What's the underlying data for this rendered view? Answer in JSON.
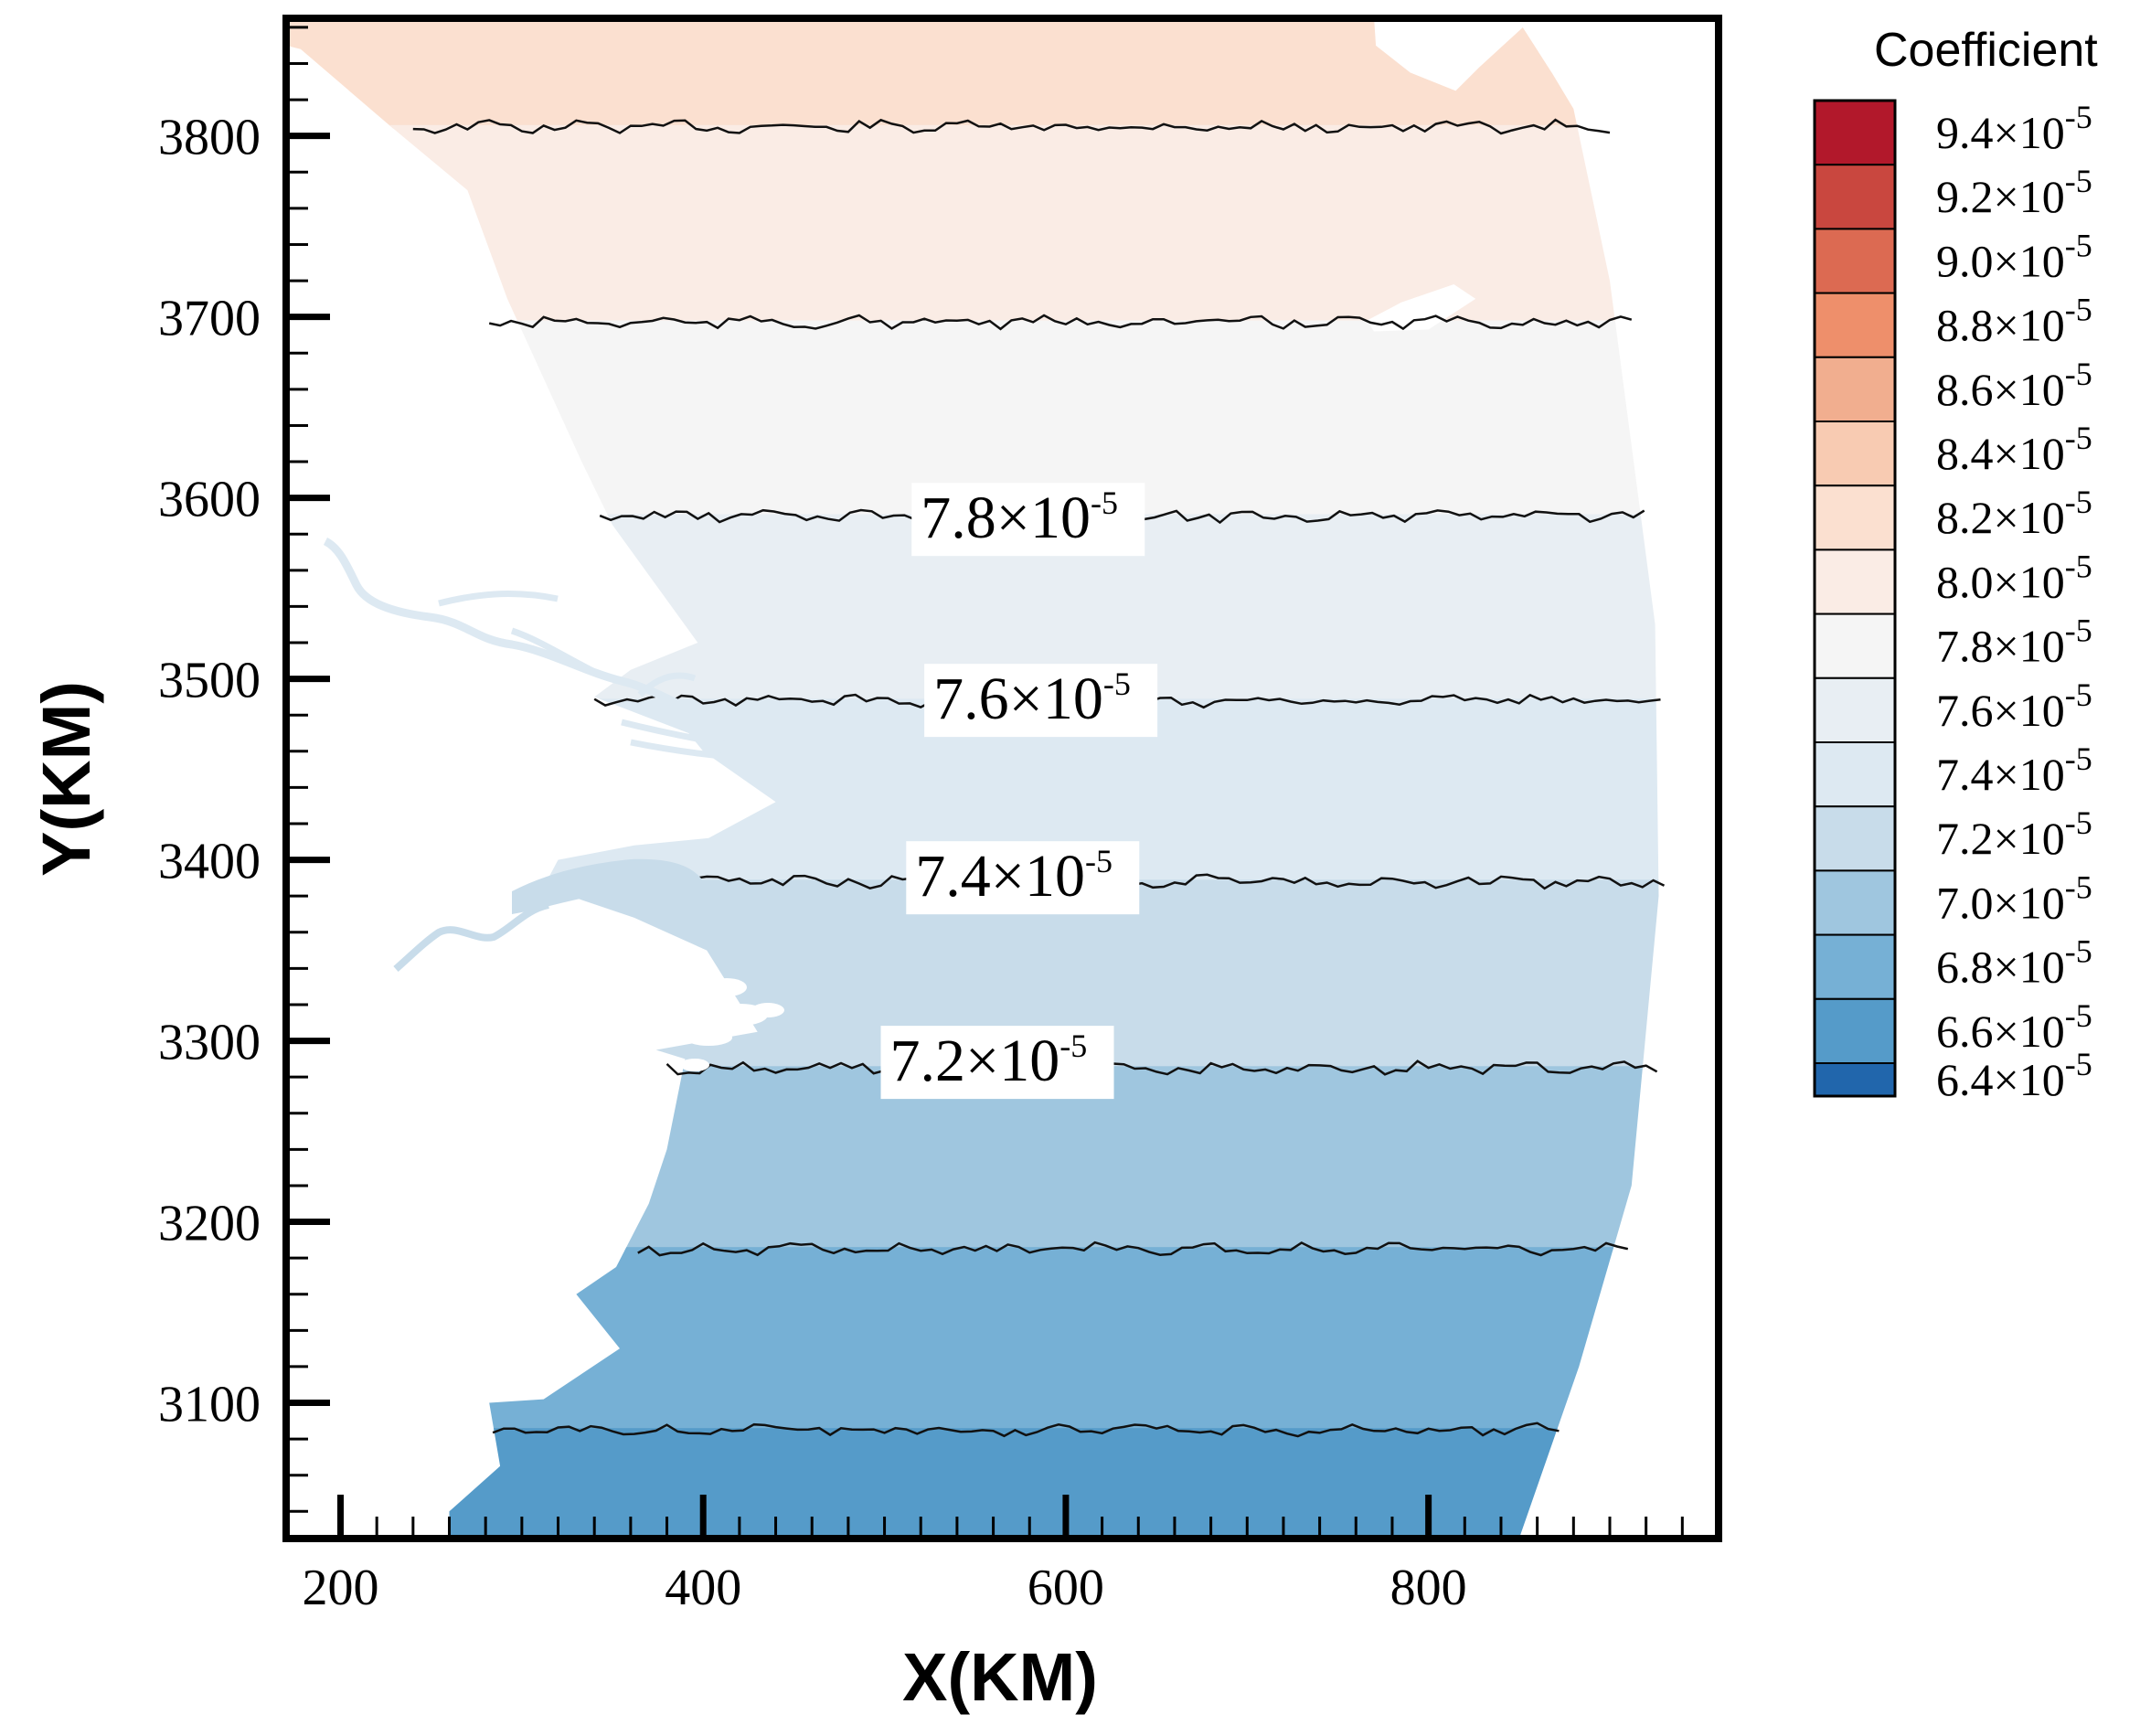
{
  "chart_data": {
    "type": "contour",
    "xlabel": "X(KM)",
    "ylabel": "Y(KM)",
    "xlim": [
      170,
      960
    ],
    "ylim": [
      3025,
      3865
    ],
    "x_ticks": [
      200,
      400,
      600,
      800
    ],
    "y_ticks": [
      3100,
      3200,
      3300,
      3400,
      3500,
      3600,
      3700,
      3800
    ],
    "grid": false,
    "legend": {
      "title": "Coefficient",
      "placement": "right",
      "levels": [
        {
          "label": "9.4×10-5",
          "mantissa": "9.4×10",
          "exp": "-5",
          "color": "#b2182b"
        },
        {
          "label": "9.2×10-5",
          "mantissa": "9.2×10",
          "exp": "-5",
          "color": "#c9473f"
        },
        {
          "label": "9.0×10-5",
          "mantissa": "9.0×10",
          "exp": "-5",
          "color": "#dc6a52"
        },
        {
          "label": "8.8×10-5",
          "mantissa": "8.8×10",
          "exp": "-5",
          "color": "#ee8f6b"
        },
        {
          "label": "8.6×10-5",
          "mantissa": "8.6×10",
          "exp": "-5",
          "color": "#f1ae8f"
        },
        {
          "label": "8.4×10-5",
          "mantissa": "8.4×10",
          "exp": "-5",
          "color": "#f8cbb2"
        },
        {
          "label": "8.2×10-5",
          "mantissa": "8.2×10",
          "exp": "-5",
          "color": "#fbe0d0"
        },
        {
          "label": "8.0×10-5",
          "mantissa": "8.0×10",
          "exp": "-5",
          "color": "#faece5"
        },
        {
          "label": "7.8×10-5",
          "mantissa": "7.8×10",
          "exp": "-5",
          "color": "#f5f5f5"
        },
        {
          "label": "7.6×10-5",
          "mantissa": "7.6×10",
          "exp": "-5",
          "color": "#e8eef3"
        },
        {
          "label": "7.4×10-5",
          "mantissa": "7.4×10",
          "exp": "-5",
          "color": "#dde9f2"
        },
        {
          "label": "7.2×10-5",
          "mantissa": "7.2×10",
          "exp": "-5",
          "color": "#c8dcea"
        },
        {
          "label": "7.0×10-5",
          "mantissa": "7.0×10",
          "exp": "-5",
          "color": "#9fc6df"
        },
        {
          "label": "6.8×10-5",
          "mantissa": "6.8×10",
          "exp": "-5",
          "color": "#76b0d5"
        },
        {
          "label": "6.6×10-5",
          "mantissa": "6.6×10",
          "exp": "-5",
          "color": "#559bc9"
        },
        {
          "label": "6.4×10-5",
          "mantissa": "6.4×10",
          "exp": "-5",
          "color": "#3b7cbc"
        }
      ],
      "bottom_color": "#2166ac"
    },
    "bands": [
      {
        "y_from": 3805,
        "y_to": 3865,
        "color": "#fbe0d0"
      },
      {
        "y_from": 3697,
        "y_to": 3805,
        "color": "#faece5"
      },
      {
        "y_from": 3590,
        "y_to": 3697,
        "color": "#f5f5f5"
      },
      {
        "y_from": 3488,
        "y_to": 3590,
        "color": "#e8eef3"
      },
      {
        "y_from": 3388,
        "y_to": 3488,
        "color": "#dde9f2"
      },
      {
        "y_from": 3285,
        "y_to": 3388,
        "color": "#c8dcea"
      },
      {
        "y_from": 3185,
        "y_to": 3285,
        "color": "#9fc6df"
      },
      {
        "y_from": 3085,
        "y_to": 3185,
        "color": "#76b0d5"
      },
      {
        "y_from": 3025,
        "y_to": 3085,
        "color": "#559bc9"
      }
    ],
    "contours": [
      {
        "y": 3805,
        "x_start": 240,
        "x_end": 905
      },
      {
        "y": 3697,
        "x_start": 282,
        "x_end": 915
      },
      {
        "y": 3590,
        "x_start": 343,
        "x_end": 923
      },
      {
        "y": 3488,
        "x_start": 340,
        "x_end": 928
      },
      {
        "y": 3388,
        "x_start": 312,
        "x_end": 930
      },
      {
        "y": 3285,
        "x_start": 380,
        "x_end": 927
      },
      {
        "y": 3185,
        "x_start": 364,
        "x_end": 912
      },
      {
        "y": 3085,
        "x_start": 284,
        "x_end": 875
      }
    ],
    "contour_labels": [
      {
        "text": "7.8×10",
        "exp": "-5",
        "x": 520,
        "y": 3578
      },
      {
        "text": "7.6×10",
        "exp": "-5",
        "x": 527,
        "y": 3478
      },
      {
        "text": "7.4×10",
        "exp": "-5",
        "x": 517,
        "y": 3380
      },
      {
        "text": "7.2×10",
        "exp": "-5",
        "x": 503,
        "y": 3278
      }
    ],
    "domain_boundary": [
      [
        170,
        3865
      ],
      [
        771,
        3865
      ],
      [
        771,
        3850
      ],
      [
        790,
        3835
      ],
      [
        815,
        3825
      ],
      [
        828,
        3838
      ],
      [
        852,
        3860
      ],
      [
        868,
        3835
      ],
      [
        880,
        3815
      ],
      [
        900,
        3720
      ],
      [
        925,
        3530
      ],
      [
        927,
        3380
      ],
      [
        912,
        3220
      ],
      [
        883,
        3120
      ],
      [
        850,
        3025
      ],
      [
        260,
        3025
      ],
      [
        260,
        3040
      ],
      [
        288,
        3065
      ],
      [
        282,
        3100
      ],
      [
        312,
        3102
      ],
      [
        354,
        3130
      ],
      [
        330,
        3160
      ],
      [
        352,
        3175
      ],
      [
        370,
        3210
      ],
      [
        380,
        3240
      ],
      [
        390,
        3290
      ],
      [
        374,
        3295
      ],
      [
        430,
        3305
      ],
      [
        402,
        3350
      ],
      [
        362,
        3368
      ],
      [
        312,
        3385
      ],
      [
        320,
        3400
      ],
      [
        362,
        3408
      ],
      [
        403,
        3412
      ],
      [
        440,
        3432
      ],
      [
        400,
        3460
      ],
      [
        392,
        3470
      ],
      [
        340,
        3490
      ],
      [
        360,
        3505
      ],
      [
        397,
        3520
      ],
      [
        350,
        3585
      ],
      [
        333,
        3620
      ],
      [
        292,
        3710
      ],
      [
        270,
        3770
      ],
      [
        228,
        3805
      ],
      [
        178,
        3848
      ],
      [
        170,
        3850
      ]
    ],
    "land_gaps": [
      [
        [
          771,
          3850
        ],
        [
          770,
          3865
        ],
        [
          870,
          3865
        ],
        [
          868,
          3835
        ],
        [
          852,
          3860
        ],
        [
          828,
          3838
        ],
        [
          815,
          3825
        ],
        [
          790,
          3835
        ]
      ],
      [
        [
          766,
          3698
        ],
        [
          785,
          3708
        ],
        [
          814,
          3718
        ],
        [
          826,
          3710
        ],
        [
          800,
          3693
        ],
        [
          770,
          3692
        ]
      ]
    ]
  }
}
